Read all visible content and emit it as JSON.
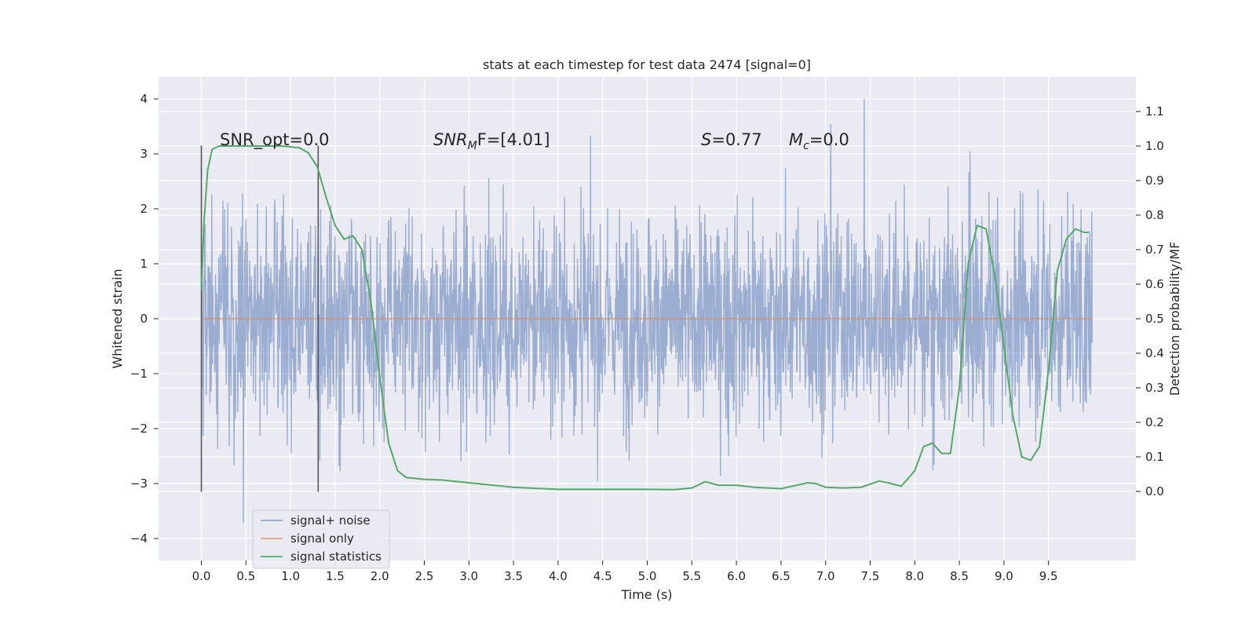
{
  "chart_data": {
    "type": "line",
    "title": "stats at each timestep for test data 2474 [signal=0]",
    "xlabel": "Time (s)",
    "ylabel_left": "Whitened strain",
    "ylabel_right": "Detection probability/MF",
    "xlim": [
      -0.48,
      10.48
    ],
    "ylim_left": [
      -4.4,
      4.4
    ],
    "ylim_right": [
      -0.2,
      1.2
    ],
    "x_ticks": [
      0.0,
      0.5,
      1.0,
      1.5,
      2.0,
      2.5,
      3.0,
      3.5,
      4.0,
      4.5,
      5.0,
      5.5,
      6.0,
      6.5,
      7.0,
      7.5,
      8.0,
      8.5,
      9.0,
      9.5
    ],
    "x_tick_labels": [
      "0.0",
      "0.5",
      "1.0",
      "1.5",
      "2.0",
      "2.5",
      "3.0",
      "3.5",
      "4.0",
      "4.5",
      "5.0",
      "5.5",
      "6.0",
      "6.5",
      "7.0",
      "7.5",
      "8.0",
      "8.5",
      "9.0",
      "9.5"
    ],
    "y_left_ticks": [
      4,
      3,
      2,
      1,
      0,
      -1,
      -2,
      -3,
      -4
    ],
    "y_left_tick_labels": [
      "4",
      "3",
      "2",
      "1",
      "0",
      "−1",
      "−2",
      "−3",
      "−4"
    ],
    "y_right_ticks": [
      1.1,
      1.0,
      0.9,
      0.8,
      0.7,
      0.6,
      0.5,
      0.4,
      0.3,
      0.2,
      0.1,
      0.0
    ],
    "y_right_tick_labels": [
      "1.1",
      "1.0",
      "0.9",
      "0.8",
      "0.7",
      "0.6",
      "0.5",
      "0.4",
      "0.3",
      "0.2",
      "0.1",
      "0.0"
    ],
    "grid": true,
    "legend_position": "lower-left",
    "series": [
      {
        "name": "signal+ noise",
        "color": "#4c72b0",
        "axis": "left",
        "x_range": [
          0.0,
          9.99
        ],
        "description_amplitude_range": [
          -3.8,
          4.0
        ]
      },
      {
        "name": "signal only",
        "color": "#dd8452",
        "axis": "left",
        "x": [
          0.0,
          9.99
        ],
        "y": [
          0.0,
          0.0
        ]
      },
      {
        "name": "signal statistics",
        "color": "#55a868",
        "axis": "right",
        "x": [
          0.0,
          0.03,
          0.07,
          0.12,
          0.2,
          0.35,
          0.6,
          0.9,
          1.1,
          1.2,
          1.3,
          1.4,
          1.5,
          1.6,
          1.7,
          1.8,
          1.9,
          2.0,
          2.1,
          2.2,
          2.3,
          2.5,
          2.7,
          3.0,
          3.5,
          4.0,
          4.5,
          5.0,
          5.3,
          5.5,
          5.65,
          5.8,
          6.0,
          6.2,
          6.5,
          6.8,
          6.9,
          7.0,
          7.2,
          7.4,
          7.6,
          7.7,
          7.85,
          8.0,
          8.1,
          8.2,
          8.3,
          8.4,
          8.5,
          8.6,
          8.7,
          8.8,
          8.9,
          9.0,
          9.1,
          9.2,
          9.3,
          9.4,
          9.5,
          9.6,
          9.7,
          9.8,
          9.9,
          9.95
        ],
        "y": [
          0.58,
          0.78,
          0.93,
          0.99,
          1.0,
          1.0,
          1.0,
          1.0,
          0.995,
          0.98,
          0.94,
          0.85,
          0.77,
          0.73,
          0.74,
          0.7,
          0.55,
          0.33,
          0.14,
          0.06,
          0.04,
          0.035,
          0.033,
          0.025,
          0.012,
          0.006,
          0.006,
          0.006,
          0.005,
          0.01,
          0.028,
          0.018,
          0.018,
          0.012,
          0.008,
          0.025,
          0.022,
          0.012,
          0.01,
          0.012,
          0.03,
          0.025,
          0.015,
          0.06,
          0.13,
          0.14,
          0.11,
          0.11,
          0.3,
          0.66,
          0.77,
          0.76,
          0.62,
          0.42,
          0.22,
          0.1,
          0.09,
          0.13,
          0.35,
          0.64,
          0.73,
          0.76,
          0.75,
          0.75
        ]
      }
    ],
    "vlines": [
      {
        "x": 0.0,
        "y_from": -3.15,
        "y_to": 3.15,
        "color": "#555555"
      },
      {
        "x": 1.31,
        "y_from": -3.15,
        "y_to": 3.15,
        "color": "#555555"
      }
    ],
    "annotations": [
      {
        "id": "snr-opt",
        "text": "SNR_opt=0.0",
        "x": 0.2,
        "y": 3.18
      },
      {
        "id": "snr-mf",
        "text_base": "SNR",
        "text_sub": "M",
        "text_rest": "F=[4.01]",
        "x": 2.6,
        "y": 3.18
      },
      {
        "id": "s-value",
        "text_italic": "S",
        "text_rest": "=0.77",
        "x": 5.62,
        "y": 3.18
      },
      {
        "id": "mc-value",
        "text_base": "M",
        "text_sub": "c",
        "text_rest": "=0.0",
        "x": 6.62,
        "y": 3.18
      }
    ]
  }
}
